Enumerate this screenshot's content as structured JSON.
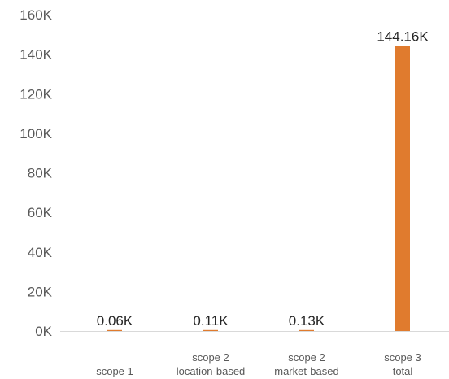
{
  "chart_data": {
    "type": "bar",
    "title": "",
    "xlabel": "",
    "ylabel": "",
    "categories": [
      [
        "scope 1"
      ],
      [
        "scope 2",
        "location-based"
      ],
      [
        "scope 2",
        "market-based"
      ],
      [
        "scope 3",
        "total"
      ]
    ],
    "values": [
      0.06,
      0.11,
      0.13,
      144.16
    ],
    "value_unit": "K",
    "data_labels": [
      "0.06K",
      "0.11K",
      "0.13K",
      "144.16K"
    ],
    "ylim": [
      0,
      160
    ],
    "yticks": [
      0,
      20,
      40,
      60,
      80,
      100,
      120,
      140,
      160
    ],
    "ytick_labels": [
      "0K",
      "20K",
      "40K",
      "60K",
      "80K",
      "100K",
      "120K",
      "140K",
      "160K"
    ],
    "grid": false,
    "legend": "none",
    "colors": {
      "bar": "#E07B2E",
      "axis": "#D9D9D9",
      "tick_text": "#595959",
      "label_text": "#262626"
    }
  }
}
